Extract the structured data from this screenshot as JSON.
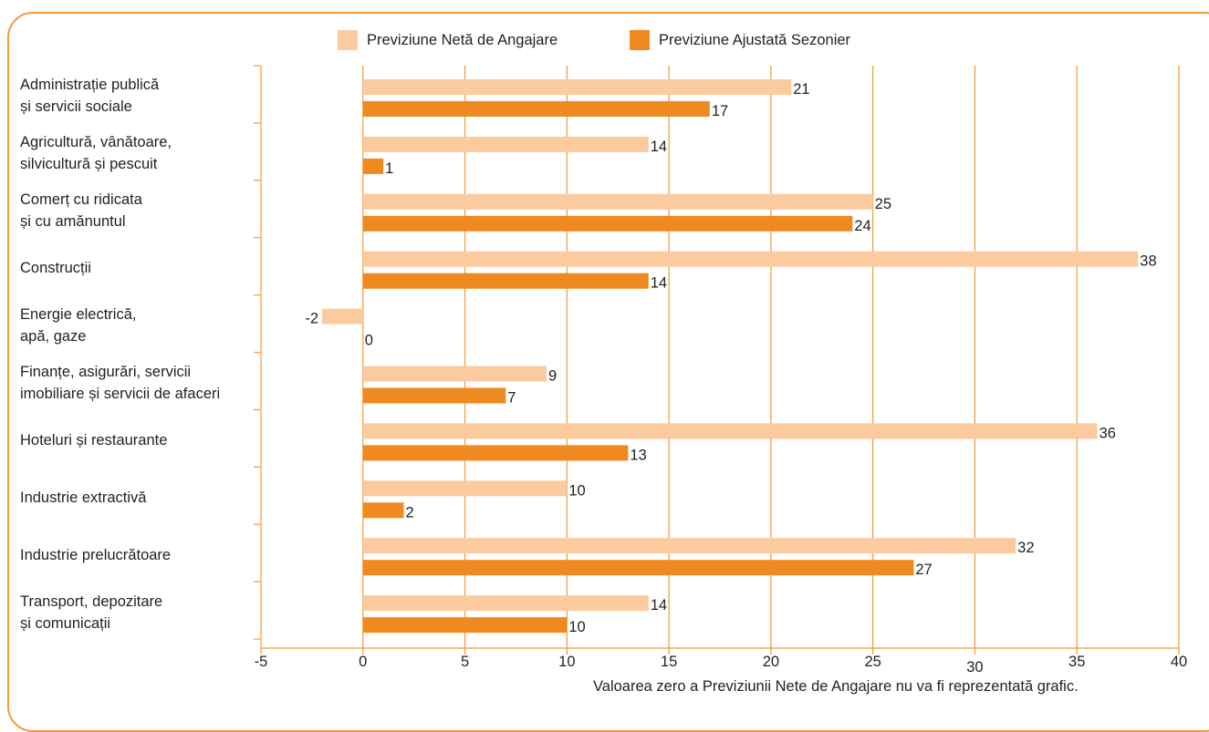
{
  "chart_data": {
    "type": "bar",
    "orientation": "horizontal",
    "categories": [
      "Administrație publică\nși servicii sociale",
      "Agricultură, vânătoare,\nsilvicultură și pescuit",
      "Comerț cu ridicata\nși cu amănuntul",
      "Construcții",
      "Energie electrică,\napă, gaze",
      "Finanțe, asigurări, servicii\nimobiliare și servicii de afaceri",
      "Hoteluri și restaurante",
      "Industrie extractivă",
      "Industrie prelucrătoare",
      "Transport, depozitare\nși comunicații"
    ],
    "series": [
      {
        "name": "Previziune Netă de Angajare",
        "color": "#fbcb9f",
        "values": [
          21,
          14,
          25,
          38,
          -2,
          9,
          36,
          10,
          32,
          14
        ]
      },
      {
        "name": "Previziune Ajustată Sezonier",
        "color": "#ee8a1f",
        "values": [
          17,
          1,
          24,
          14,
          0,
          7,
          13,
          2,
          27,
          10
        ]
      }
    ],
    "xlim": [
      -5,
      40
    ],
    "xticks": [
      "-5",
      "0",
      "5",
      "10",
      "15",
      "20",
      "25",
      "30",
      "35",
      "40"
    ],
    "grid": true,
    "legend_position": "top-center",
    "axis_color": "#f29a3a"
  },
  "footnote": "Valoarea zero a Previziunii Nete de Angajare nu va fi reprezentată grafic."
}
